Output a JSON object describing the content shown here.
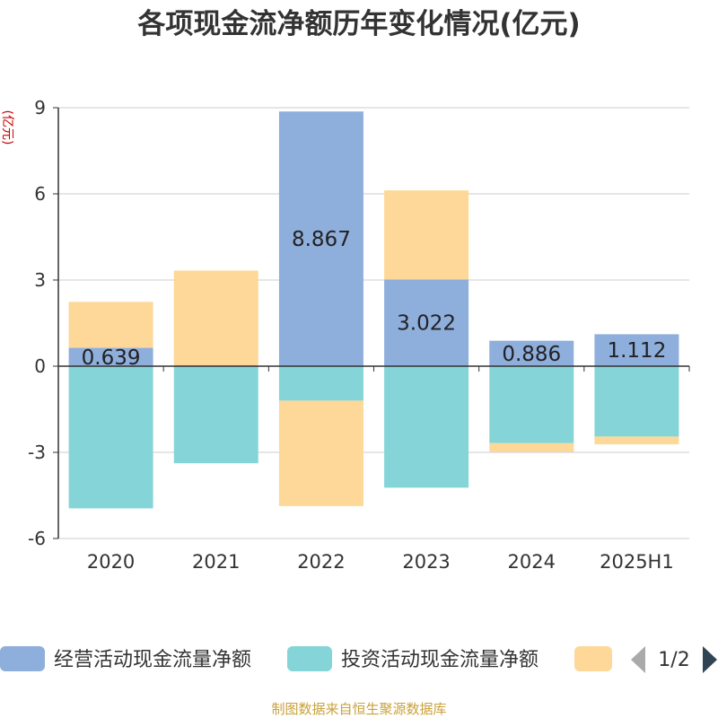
{
  "chart_data": {
    "type": "bar",
    "stacked": true,
    "title": "各项现金流净额历年变化情况(亿元)",
    "ylabel": "(亿元)",
    "ylim": [
      -6,
      9
    ],
    "yticks": [
      9,
      6,
      3,
      0,
      -3,
      -6
    ],
    "grid": true,
    "categories": [
      "2020",
      "2021",
      "2022",
      "2023",
      "2024",
      "2025H1"
    ],
    "series": [
      {
        "name": "经营活动现金流量净额",
        "color": "#8eaedc",
        "values": [
          0.639,
          0.028,
          8.867,
          3.022,
          0.886,
          1.112
        ],
        "labels": [
          "0.639",
          "",
          "8.867",
          "3.022",
          "0.886",
          "1.112"
        ]
      },
      {
        "name": "投资活动现金流量净额",
        "color": "#85d5d8",
        "values": [
          -4.95,
          -3.38,
          -1.2,
          -4.23,
          -2.68,
          -2.45
        ]
      },
      {
        "name": "",
        "color": "#fdd898",
        "values": [
          1.6,
          3.3,
          -3.67,
          3.1,
          -0.3,
          -0.27
        ]
      }
    ],
    "legend": {
      "position": "bottom",
      "page": "1/2"
    }
  },
  "footer": "制图数据来自恒生聚源数据库"
}
